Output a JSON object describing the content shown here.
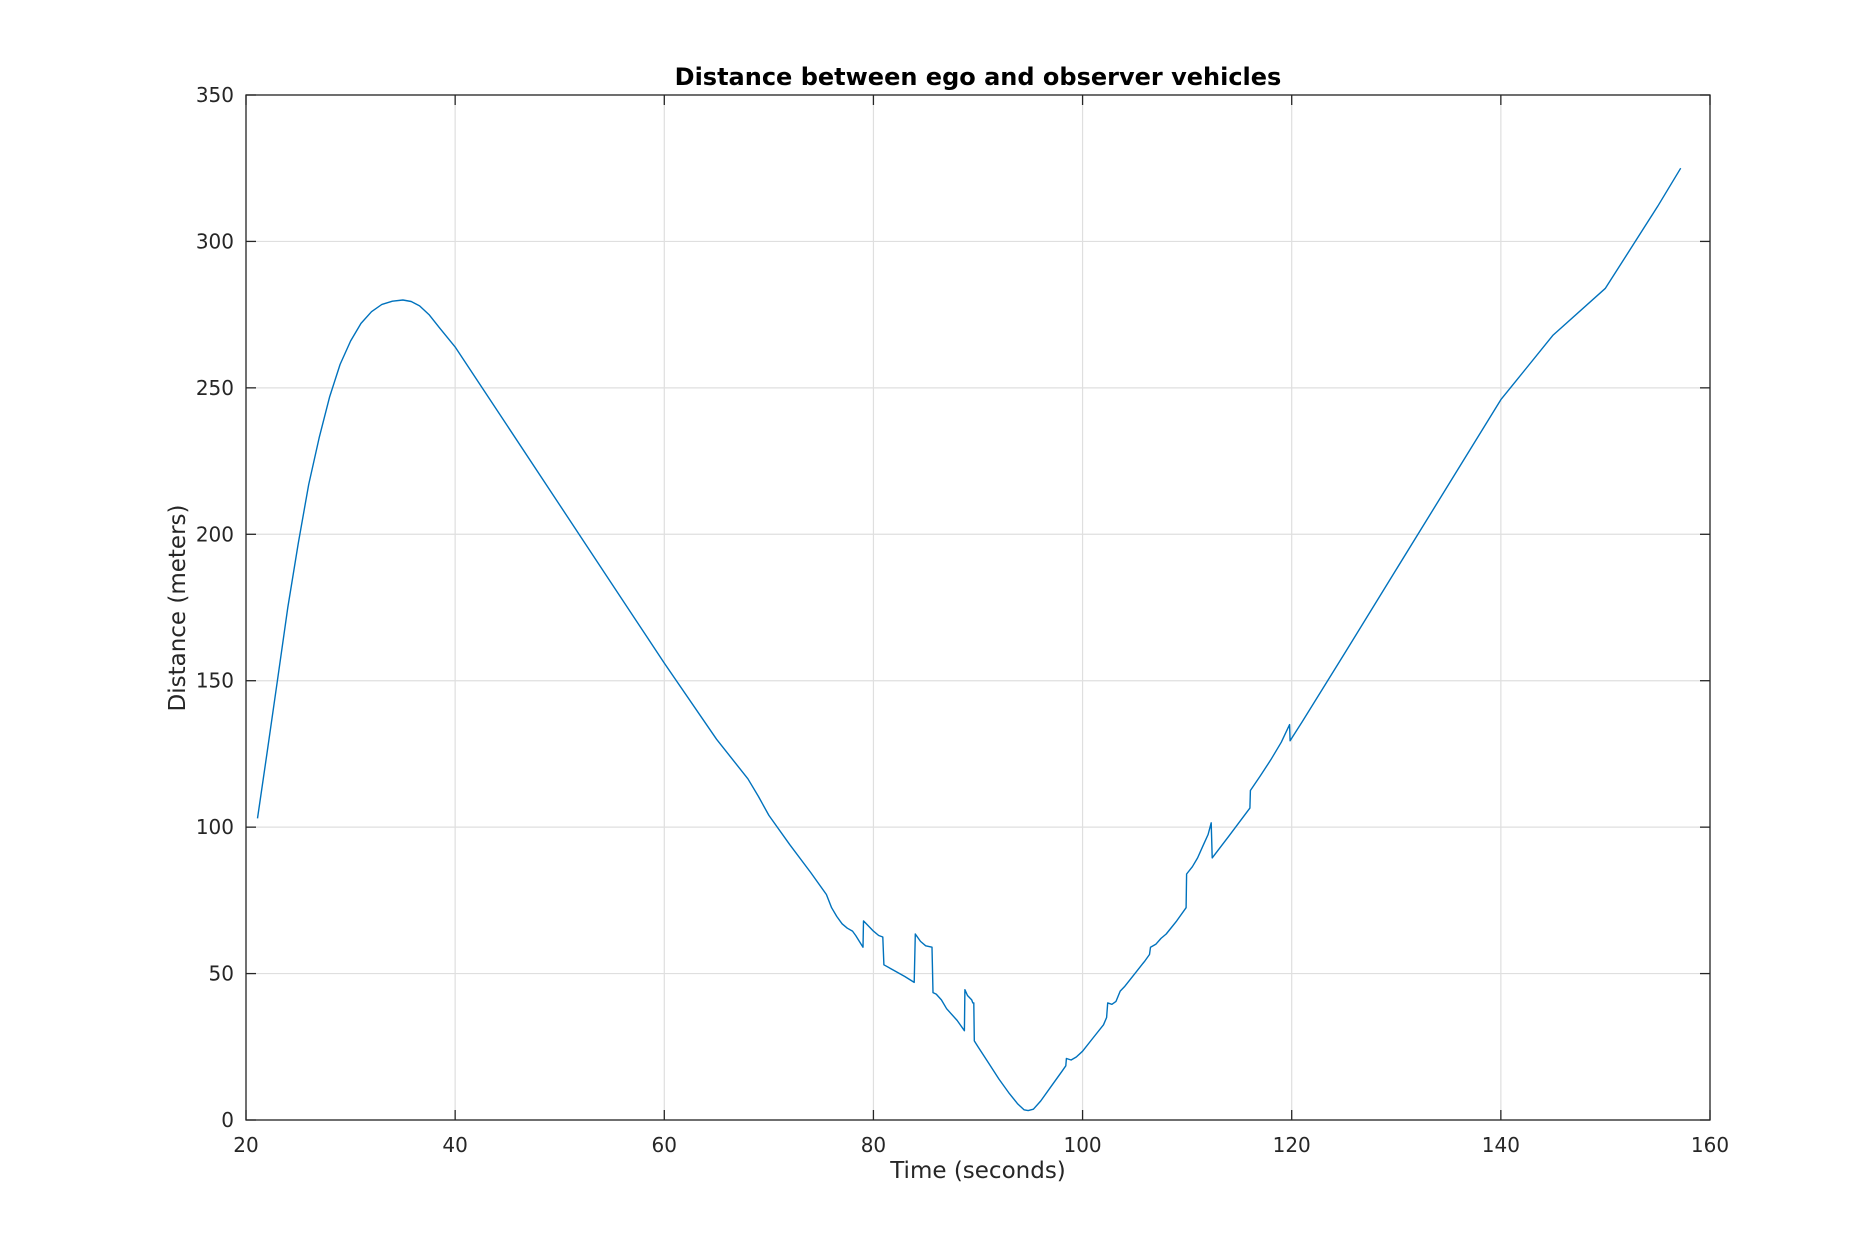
{
  "chart_data": {
    "type": "line",
    "title": "Distance between ego and observer vehicles",
    "xlabel": "Time (seconds)",
    "ylabel": "Distance (meters)",
    "xlim": [
      20,
      160
    ],
    "ylim": [
      0,
      350
    ],
    "xticks": [
      20,
      40,
      60,
      80,
      100,
      120,
      140,
      160
    ],
    "yticks": [
      0,
      50,
      100,
      150,
      200,
      250,
      300,
      350
    ],
    "grid": true,
    "legend": "none",
    "colors": {
      "series": "#0072BD"
    },
    "series": [
      {
        "points": [
          [
            21.1,
            103
          ],
          [
            22,
            125
          ],
          [
            23,
            150
          ],
          [
            24,
            175
          ],
          [
            25,
            197
          ],
          [
            26,
            217
          ],
          [
            27,
            233
          ],
          [
            28,
            247
          ],
          [
            29,
            258
          ],
          [
            30,
            266
          ],
          [
            31,
            272
          ],
          [
            32,
            276
          ],
          [
            33,
            278.5
          ],
          [
            34,
            279.6
          ],
          [
            35,
            280
          ],
          [
            35.8,
            279.5
          ],
          [
            36.6,
            278
          ],
          [
            37.5,
            275
          ],
          [
            38.5,
            270.5
          ],
          [
            40,
            264
          ],
          [
            45,
            237
          ],
          [
            50,
            210
          ],
          [
            55,
            183
          ],
          [
            60,
            156
          ],
          [
            65,
            130
          ],
          [
            68,
            116.5
          ],
          [
            69,
            110.5
          ],
          [
            70,
            104
          ],
          [
            72,
            94
          ],
          [
            74,
            84.5
          ],
          [
            75.5,
            77
          ],
          [
            76,
            72.5
          ],
          [
            76.5,
            69.5
          ],
          [
            77,
            67
          ],
          [
            77.5,
            65.5
          ],
          [
            78,
            64.5
          ],
          [
            78.3,
            63
          ],
          [
            79,
            59
          ],
          [
            79.05,
            68
          ],
          [
            79.6,
            66
          ],
          [
            80,
            64.5
          ],
          [
            80.5,
            63
          ],
          [
            80.9,
            62.5
          ],
          [
            81,
            53
          ],
          [
            82,
            51
          ],
          [
            83,
            49
          ],
          [
            83.9,
            47
          ],
          [
            84,
            63.5
          ],
          [
            84.5,
            61
          ],
          [
            85,
            59.5
          ],
          [
            85.6,
            59
          ],
          [
            85.7,
            43.5
          ],
          [
            86,
            43
          ],
          [
            86.5,
            41
          ],
          [
            87,
            38
          ],
          [
            88,
            34
          ],
          [
            88.7,
            30.5
          ],
          [
            88.75,
            44.5
          ],
          [
            89,
            42.5
          ],
          [
            89.4,
            41
          ],
          [
            89.5,
            40
          ],
          [
            89.6,
            40
          ],
          [
            89.65,
            27
          ],
          [
            90,
            25
          ],
          [
            91,
            19.5
          ],
          [
            92,
            14
          ],
          [
            93,
            9
          ],
          [
            93.8,
            5.5
          ],
          [
            94.4,
            3.5
          ],
          [
            94.8,
            3.2
          ],
          [
            95.3,
            3.7
          ],
          [
            96,
            6.5
          ],
          [
            97,
            11.5
          ],
          [
            98,
            16.5
          ],
          [
            98.4,
            18.5
          ],
          [
            98.45,
            21
          ],
          [
            98.9,
            20.5
          ],
          [
            99.4,
            21.5
          ],
          [
            100,
            23.5
          ],
          [
            101,
            28
          ],
          [
            102,
            32.5
          ],
          [
            102.3,
            35
          ],
          [
            102.4,
            40
          ],
          [
            102.8,
            39.5
          ],
          [
            103.2,
            40.5
          ],
          [
            103.6,
            44
          ],
          [
            104,
            45.5
          ],
          [
            105,
            50
          ],
          [
            106,
            54.5
          ],
          [
            106.4,
            56.5
          ],
          [
            106.5,
            59
          ],
          [
            107,
            60
          ],
          [
            107.5,
            62
          ],
          [
            108,
            63.5
          ],
          [
            109,
            68
          ],
          [
            109.9,
            72.5
          ],
          [
            109.95,
            84
          ],
          [
            110.5,
            86.5
          ],
          [
            111,
            89.5
          ],
          [
            111.5,
            93.5
          ],
          [
            112,
            97.5
          ],
          [
            112.3,
            101.5
          ],
          [
            112.4,
            89.5
          ],
          [
            114,
            97
          ],
          [
            116,
            106.5
          ],
          [
            116.05,
            112.5
          ],
          [
            117,
            117.5
          ],
          [
            118,
            123
          ],
          [
            119,
            129
          ],
          [
            119.8,
            135
          ],
          [
            119.85,
            129.5
          ],
          [
            121,
            136
          ],
          [
            125,
            159
          ],
          [
            130,
            188
          ],
          [
            135,
            217
          ],
          [
            140,
            246
          ],
          [
            145,
            268
          ],
          [
            150,
            284
          ],
          [
            155,
            312
          ],
          [
            157.2,
            325
          ]
        ]
      }
    ]
  }
}
